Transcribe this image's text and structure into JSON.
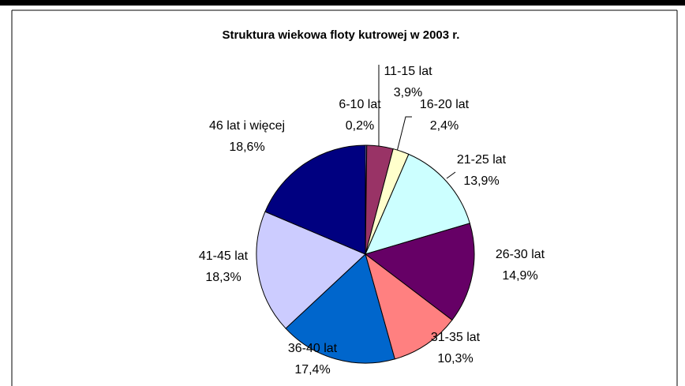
{
  "chart_data": {
    "type": "pie",
    "title": "Struktura wiekowa floty kutrowej w 2003 r.",
    "categories": [
      "6-10 lat",
      "11-15 lat",
      "16-20 lat",
      "21-25 lat",
      "26-30 lat",
      "31-35 lat",
      "36-40 lat",
      "41-45 lat",
      "46 lat i więcej"
    ],
    "values": [
      0.2,
      3.9,
      2.4,
      13.9,
      14.9,
      10.3,
      17.4,
      18.3,
      18.6
    ],
    "value_labels": [
      "0,2%",
      "3,9%",
      "2,4%",
      "13,9%",
      "14,9%",
      "10,3%",
      "17,4%",
      "18,3%",
      "18,6%"
    ],
    "colors": [
      "#9999FF",
      "#993366",
      "#FFFFCC",
      "#CCFFFF",
      "#660066",
      "#FF8080",
      "#0066CC",
      "#CCCCFF",
      "#000080"
    ]
  }
}
